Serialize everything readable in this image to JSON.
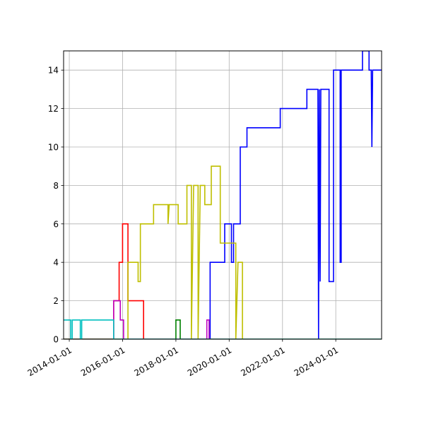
{
  "chart_data": {
    "type": "line",
    "title": "",
    "xlabel": "",
    "ylabel": "",
    "x_axis": "date",
    "xlim": [
      "2013-10-15",
      "2025-09-20"
    ],
    "ylim": [
      0,
      15
    ],
    "grid": true,
    "xticks": [
      "2014-01-01",
      "2016-01-01",
      "2018-01-01",
      "2020-01-01",
      "2022-01-01",
      "2024-01-01"
    ],
    "yticks": [
      0,
      2,
      4,
      6,
      8,
      10,
      12,
      14
    ],
    "series": [
      {
        "color": "#0000ff",
        "points": [
          [
            "2013-10-15",
            0
          ],
          [
            "2019-04-15",
            0
          ],
          [
            "2019-04-15",
            4
          ],
          [
            "2019-11-01",
            4
          ],
          [
            "2019-11-01",
            6
          ],
          [
            "2020-02-01",
            6
          ],
          [
            "2020-02-01",
            4
          ],
          [
            "2020-03-01",
            4
          ],
          [
            "2020-03-01",
            6
          ],
          [
            "2020-06-01",
            6
          ],
          [
            "2020-06-01",
            10
          ],
          [
            "2020-09-01",
            10
          ],
          [
            "2020-09-01",
            11
          ],
          [
            "2021-12-01",
            11
          ],
          [
            "2021-12-01",
            12
          ],
          [
            "2022-12-01",
            12
          ],
          [
            "2022-12-01",
            13
          ],
          [
            "2023-05-01",
            13
          ],
          [
            "2023-05-10",
            0
          ],
          [
            "2023-05-20",
            13
          ],
          [
            "2023-06-01",
            3
          ],
          [
            "2023-06-10",
            13
          ],
          [
            "2023-10-01",
            13
          ],
          [
            "2023-10-01",
            3
          ],
          [
            "2023-12-01",
            3
          ],
          [
            "2023-12-01",
            14
          ],
          [
            "2024-03-01",
            14
          ],
          [
            "2024-03-01",
            4
          ],
          [
            "2024-03-15",
            4
          ],
          [
            "2024-03-15",
            14
          ],
          [
            "2025-01-01",
            14
          ],
          [
            "2025-01-01",
            15
          ],
          [
            "2025-04-01",
            15
          ],
          [
            "2025-04-01",
            14
          ],
          [
            "2025-05-01",
            14
          ],
          [
            "2025-05-10",
            10
          ],
          [
            "2025-05-20",
            14
          ],
          [
            "2025-09-20",
            14
          ]
        ]
      },
      {
        "color": "#ff0000",
        "points": [
          [
            "2013-10-15",
            0
          ],
          [
            "2015-09-01",
            0
          ],
          [
            "2015-09-01",
            2
          ],
          [
            "2015-11-15",
            2
          ],
          [
            "2015-11-15",
            4
          ],
          [
            "2016-01-01",
            4
          ],
          [
            "2016-01-01",
            6
          ],
          [
            "2016-03-15",
            6
          ],
          [
            "2016-03-15",
            2
          ],
          [
            "2016-10-15",
            2
          ],
          [
            "2016-10-15",
            0
          ],
          [
            "2025-09-20",
            0
          ]
        ]
      },
      {
        "color": "#bfbf00",
        "points": [
          [
            "2013-10-15",
            0
          ],
          [
            "2016-03-15",
            0
          ],
          [
            "2016-03-15",
            4
          ],
          [
            "2016-08-01",
            4
          ],
          [
            "2016-08-01",
            3
          ],
          [
            "2016-09-01",
            3
          ],
          [
            "2016-09-01",
            6
          ],
          [
            "2017-03-01",
            6
          ],
          [
            "2017-03-01",
            7
          ],
          [
            "2017-09-15",
            7
          ],
          [
            "2017-09-15",
            6
          ],
          [
            "2017-10-01",
            7
          ],
          [
            "2018-02-01",
            7
          ],
          [
            "2018-02-01",
            6
          ],
          [
            "2018-06-01",
            6
          ],
          [
            "2018-06-01",
            8
          ],
          [
            "2018-08-01",
            8
          ],
          [
            "2018-08-01",
            0
          ],
          [
            "2018-09-01",
            8
          ],
          [
            "2018-11-01",
            8
          ],
          [
            "2018-11-01",
            0
          ],
          [
            "2018-12-01",
            8
          ],
          [
            "2019-02-01",
            8
          ],
          [
            "2019-02-01",
            7
          ],
          [
            "2019-05-01",
            7
          ],
          [
            "2019-05-01",
            9
          ],
          [
            "2019-09-01",
            9
          ],
          [
            "2019-09-01",
            5
          ],
          [
            "2020-04-01",
            5
          ],
          [
            "2020-04-01",
            0
          ],
          [
            "2020-05-01",
            4
          ],
          [
            "2020-07-01",
            4
          ],
          [
            "2020-07-01",
            0
          ],
          [
            "2025-09-20",
            0
          ]
        ]
      },
      {
        "color": "#bf00bf",
        "points": [
          [
            "2013-10-15",
            0
          ],
          [
            "2015-09-01",
            0
          ],
          [
            "2015-09-01",
            2
          ],
          [
            "2015-12-01",
            2
          ],
          [
            "2015-12-01",
            1
          ],
          [
            "2016-01-15",
            1
          ],
          [
            "2016-01-15",
            0
          ],
          [
            "2019-03-01",
            0
          ],
          [
            "2019-03-01",
            1
          ],
          [
            "2019-04-01",
            1
          ],
          [
            "2019-04-01",
            0
          ],
          [
            "2025-09-20",
            0
          ]
        ]
      },
      {
        "color": "#008000",
        "points": [
          [
            "2013-10-15",
            0
          ],
          [
            "2018-01-01",
            0
          ],
          [
            "2018-01-01",
            1
          ],
          [
            "2018-03-01",
            1
          ],
          [
            "2018-03-01",
            0
          ],
          [
            "2025-09-20",
            0
          ]
        ]
      },
      {
        "color": "#00bfbf",
        "points": [
          [
            "2013-10-15",
            1
          ],
          [
            "2014-01-20",
            1
          ],
          [
            "2014-01-20",
            0
          ],
          [
            "2014-02-10",
            0
          ],
          [
            "2014-02-10",
            1
          ],
          [
            "2014-06-01",
            1
          ],
          [
            "2014-06-01",
            0
          ],
          [
            "2014-06-20",
            0
          ],
          [
            "2014-06-20",
            1
          ],
          [
            "2015-09-01",
            1
          ],
          [
            "2015-09-01",
            0
          ],
          [
            "2025-09-20",
            0
          ]
        ]
      }
    ]
  }
}
